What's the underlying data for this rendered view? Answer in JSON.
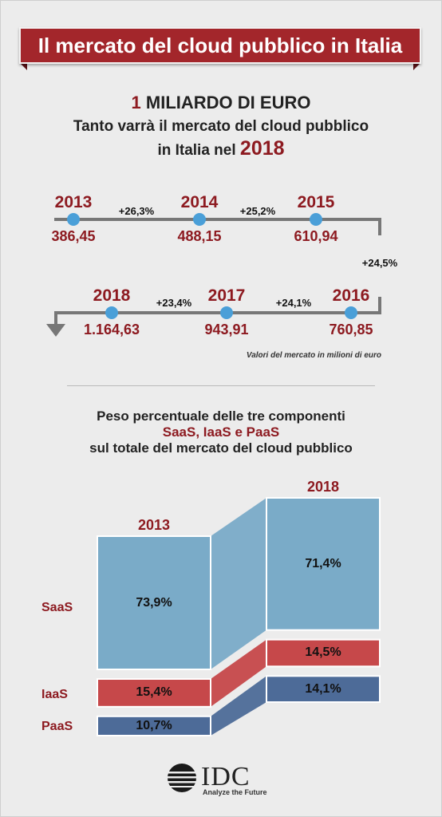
{
  "title": "Il mercato del cloud pubblico in Italia",
  "headline": {
    "amount_num": "1",
    "amount_text": "MILIARDO DI EURO",
    "line1": "Tanto varrà il mercato del cloud pubblico",
    "line2": "in Italia nel",
    "year": "2018"
  },
  "timeline": {
    "points": [
      {
        "year": "2013",
        "value": "386,45"
      },
      {
        "year": "2014",
        "value": "488,15"
      },
      {
        "year": "2015",
        "value": "610,94"
      },
      {
        "year": "2016",
        "value": "760,85"
      },
      {
        "year": "2017",
        "value": "943,91"
      },
      {
        "year": "2018",
        "value": "1.164,63"
      }
    ],
    "growth": [
      "+26,3%",
      "+25,2%",
      "+24,5%",
      "+24,1%",
      "+23,4%"
    ],
    "note": "Valori del mercato in milioni di euro"
  },
  "composition": {
    "title_line1": "Peso percentuale delle tre componenti",
    "title_line2": "SaaS, IaaS e PaaS",
    "title_line3": "sul totale del mercato del cloud pubblico",
    "row_labels": [
      "SaaS",
      "IaaS",
      "PaaS"
    ]
  },
  "colors": {
    "SaaS": "#7aabc8",
    "IaaS": "#c6484a",
    "PaaS": "#4d6b98",
    "accent": "#8d1a20"
  },
  "chart_data": [
    {
      "type": "line",
      "x": [
        "2013",
        "2014",
        "2015",
        "2016",
        "2017",
        "2018"
      ],
      "series": [
        {
          "values": [
            386.45,
            488.15,
            610.94,
            760.85,
            943.91,
            1164.63
          ]
        }
      ],
      "annotations": [
        "+26,3%",
        "+25,2%",
        "+24,5%",
        "+24,1%",
        "+23,4%"
      ],
      "note": "Valori del mercato in milioni di euro"
    },
    {
      "type": "bar",
      "stacked": true,
      "categories": [
        "2013",
        "2018"
      ],
      "series": [
        {
          "name": "SaaS",
          "values": [
            73.9,
            71.4
          ],
          "labels": [
            "73,9%",
            "71,4%"
          ]
        },
        {
          "name": "IaaS",
          "values": [
            15.4,
            14.5
          ],
          "labels": [
            "15,4%",
            "14,5%"
          ]
        },
        {
          "name": "PaaS",
          "values": [
            10.7,
            14.1
          ],
          "labels": [
            "10,7%",
            "14,1%"
          ]
        }
      ]
    }
  ],
  "logo": {
    "name": "IDC",
    "tagline": "Analyze the Future"
  }
}
